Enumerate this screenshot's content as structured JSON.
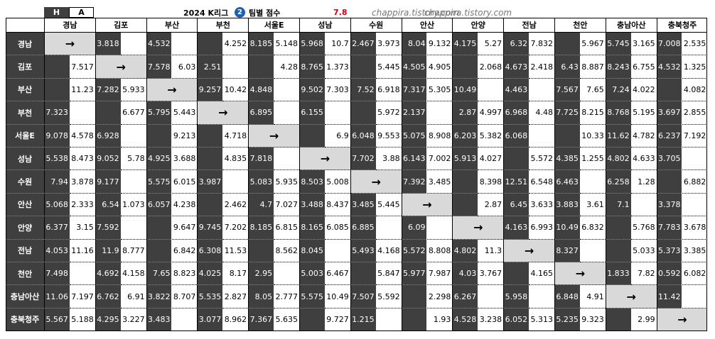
{
  "header": {
    "home": "H",
    "away": "A",
    "title": "2024 K리그",
    "badge": "2",
    "subtitle": "팀별 점수",
    "highlight": 7.8,
    "watermark": "chappira.tistory.com"
  },
  "table": {
    "columns": [
      "경남",
      "김포",
      "부산",
      "부천",
      "서울E",
      "성남",
      "수원",
      "안산",
      "안양",
      "전남",
      "천안",
      "충남아산",
      "충북청주"
    ],
    "diagonal": "→",
    "rows": [
      {
        "team": "경남",
        "cells": [
          null,
          [
            3.818,
            null
          ],
          [
            4.532,
            null
          ],
          [
            null,
            4.252
          ],
          [
            8.185,
            5.148
          ],
          [
            5.968,
            10.7
          ],
          [
            2.467,
            3.973
          ],
          [
            8.04,
            9.132
          ],
          [
            4.175,
            5.27
          ],
          [
            6.32,
            7.832
          ],
          [
            null,
            5.967
          ],
          [
            5.745,
            3.165
          ],
          [
            7.008,
            2.535
          ]
        ]
      },
      {
        "team": "김포",
        "cells": [
          [
            null,
            7.517
          ],
          null,
          [
            7.578,
            6.03
          ],
          [
            2.51,
            null
          ],
          [
            null,
            4.28
          ],
          [
            8.765,
            1.373
          ],
          [
            null,
            5.445
          ],
          [
            4.505,
            4.905
          ],
          [
            null,
            2.068
          ],
          [
            4.673,
            2.418
          ],
          [
            6.43,
            8.887
          ],
          [
            8.243,
            6.755
          ],
          [
            4.532,
            1.325
          ]
        ]
      },
      {
        "team": "부산",
        "cells": [
          [
            null,
            11.23
          ],
          [
            7.282,
            5.933
          ],
          null,
          [
            9.257,
            10.42
          ],
          [
            4.848,
            null
          ],
          [
            9.502,
            7.303
          ],
          [
            7.52,
            6.918
          ],
          [
            7.317,
            5.305
          ],
          [
            10.49,
            null
          ],
          [
            4.463,
            null
          ],
          [
            7.567,
            7.65
          ],
          [
            7.24,
            4.022
          ],
          [
            null,
            4.082
          ]
        ]
      },
      {
        "team": "부천",
        "cells": [
          [
            7.323,
            null
          ],
          [
            null,
            6.677
          ],
          [
            5.795,
            5.443
          ],
          null,
          [
            6.895,
            null
          ],
          [
            6.155,
            null
          ],
          [
            null,
            5.972
          ],
          [
            2.137,
            null
          ],
          [
            2.87,
            4.997
          ],
          [
            6.968,
            4.48
          ],
          [
            7.725,
            8.215
          ],
          [
            8.768,
            5.195
          ],
          [
            3.697,
            2.855
          ]
        ]
      },
      {
        "team": "서울E",
        "cells": [
          [
            9.078,
            4.578
          ],
          [
            6.928,
            null
          ],
          [
            null,
            9.213
          ],
          [
            null,
            4.718
          ],
          null,
          [
            null,
            6.9
          ],
          [
            6.048,
            9.553
          ],
          [
            5.075,
            8.908
          ],
          [
            6.203,
            5.382
          ],
          [
            6.068,
            null
          ],
          [
            null,
            10.33
          ],
          [
            11.62,
            4.782
          ],
          [
            6.237,
            7.192
          ]
        ]
      },
      {
        "team": "성남",
        "cells": [
          [
            5.538,
            8.473
          ],
          [
            9.052,
            5.78
          ],
          [
            4.925,
            3.688
          ],
          [
            null,
            4.835
          ],
          [
            7.818,
            null
          ],
          null,
          [
            7.702,
            3.88
          ],
          [
            6.143,
            7.002
          ],
          [
            5.913,
            4.027
          ],
          [
            null,
            5.572
          ],
          [
            4.385,
            1.255
          ],
          [
            4.802,
            4.633
          ],
          [
            3.705,
            null
          ]
        ]
      },
      {
        "team": "수원",
        "cells": [
          [
            7.94,
            3.878
          ],
          [
            9.177,
            null
          ],
          [
            5.575,
            6.015
          ],
          [
            3.987,
            null
          ],
          [
            5.083,
            5.935
          ],
          [
            8.503,
            5.008
          ],
          null,
          [
            7.392,
            3.485
          ],
          [
            null,
            8.398
          ],
          [
            12.51,
            6.548
          ],
          [
            6.463,
            null
          ],
          [
            6.258,
            1.28
          ],
          [
            null,
            6.882
          ]
        ]
      },
      {
        "team": "안산",
        "cells": [
          [
            5.068,
            2.333
          ],
          [
            6.54,
            1.073
          ],
          [
            6.057,
            4.238
          ],
          [
            null,
            2.462
          ],
          [
            4.7,
            7.027
          ],
          [
            3.488,
            8.437
          ],
          [
            3.485,
            5.445
          ],
          null,
          [
            null,
            2.87
          ],
          [
            6.45,
            3.633
          ],
          [
            3.883,
            3.61
          ],
          [
            7.1,
            null
          ],
          [
            3.378,
            null
          ]
        ]
      },
      {
        "team": "안양",
        "cells": [
          [
            6.377,
            3.15
          ],
          [
            7.592,
            null
          ],
          [
            null,
            9.647
          ],
          [
            9.745,
            7.202
          ],
          [
            8.185,
            6.815
          ],
          [
            8.165,
            6.085
          ],
          [
            6.885,
            null
          ],
          [
            6.09,
            null
          ],
          null,
          [
            4.163,
            6.993
          ],
          [
            10.49,
            6.832
          ],
          [
            null,
            5.768
          ],
          [
            7.783,
            3.678
          ]
        ]
      },
      {
        "team": "전남",
        "cells": [
          [
            4.053,
            11.16
          ],
          [
            11.9,
            8.777
          ],
          [
            null,
            6.842
          ],
          [
            6.308,
            11.53
          ],
          [
            null,
            8.562
          ],
          [
            8.045,
            null
          ],
          [
            5.493,
            4.168
          ],
          [
            5.572,
            8.808
          ],
          [
            4.802,
            11.3
          ],
          null,
          [
            8.327,
            null
          ],
          [
            null,
            5.033
          ],
          [
            5.373,
            3.385
          ]
        ]
      },
      {
        "team": "천안",
        "cells": [
          [
            7.498,
            null
          ],
          [
            4.692,
            4.158
          ],
          [
            7.65,
            8.823
          ],
          [
            4.025,
            8.17
          ],
          [
            2.95,
            null
          ],
          [
            5.003,
            6.467
          ],
          [
            null,
            5.847
          ],
          [
            5.977,
            7.987
          ],
          [
            4.03,
            3.767
          ],
          [
            null,
            4.165
          ],
          null,
          [
            1.833,
            7.82
          ],
          [
            0.592,
            6.082
          ]
        ]
      },
      {
        "team": "충남아산",
        "cells": [
          [
            11.06,
            7.197
          ],
          [
            6.762,
            6.91
          ],
          [
            3.822,
            8.707
          ],
          [
            5.535,
            2.827
          ],
          [
            8.05,
            2.777
          ],
          [
            5.575,
            10.49
          ],
          [
            7.507,
            5.592
          ],
          [
            null,
            2.298
          ],
          [
            6.267,
            null
          ],
          [
            5.958,
            null
          ],
          [
            6.848,
            4.91
          ],
          null,
          [
            11.42,
            null
          ]
        ]
      },
      {
        "team": "충북청주",
        "cells": [
          [
            5.567,
            5.188
          ],
          [
            4.295,
            3.227
          ],
          [
            3.483,
            null
          ],
          [
            3.077,
            8.962
          ],
          [
            7.367,
            5.635
          ],
          [
            null,
            9.727
          ],
          [
            1.215,
            null
          ],
          [
            null,
            1.93
          ],
          [
            4.528,
            3.238
          ],
          [
            6.052,
            5.313
          ],
          [
            5.235,
            9.323
          ],
          [
            null,
            2.99
          ],
          null
        ]
      }
    ]
  }
}
